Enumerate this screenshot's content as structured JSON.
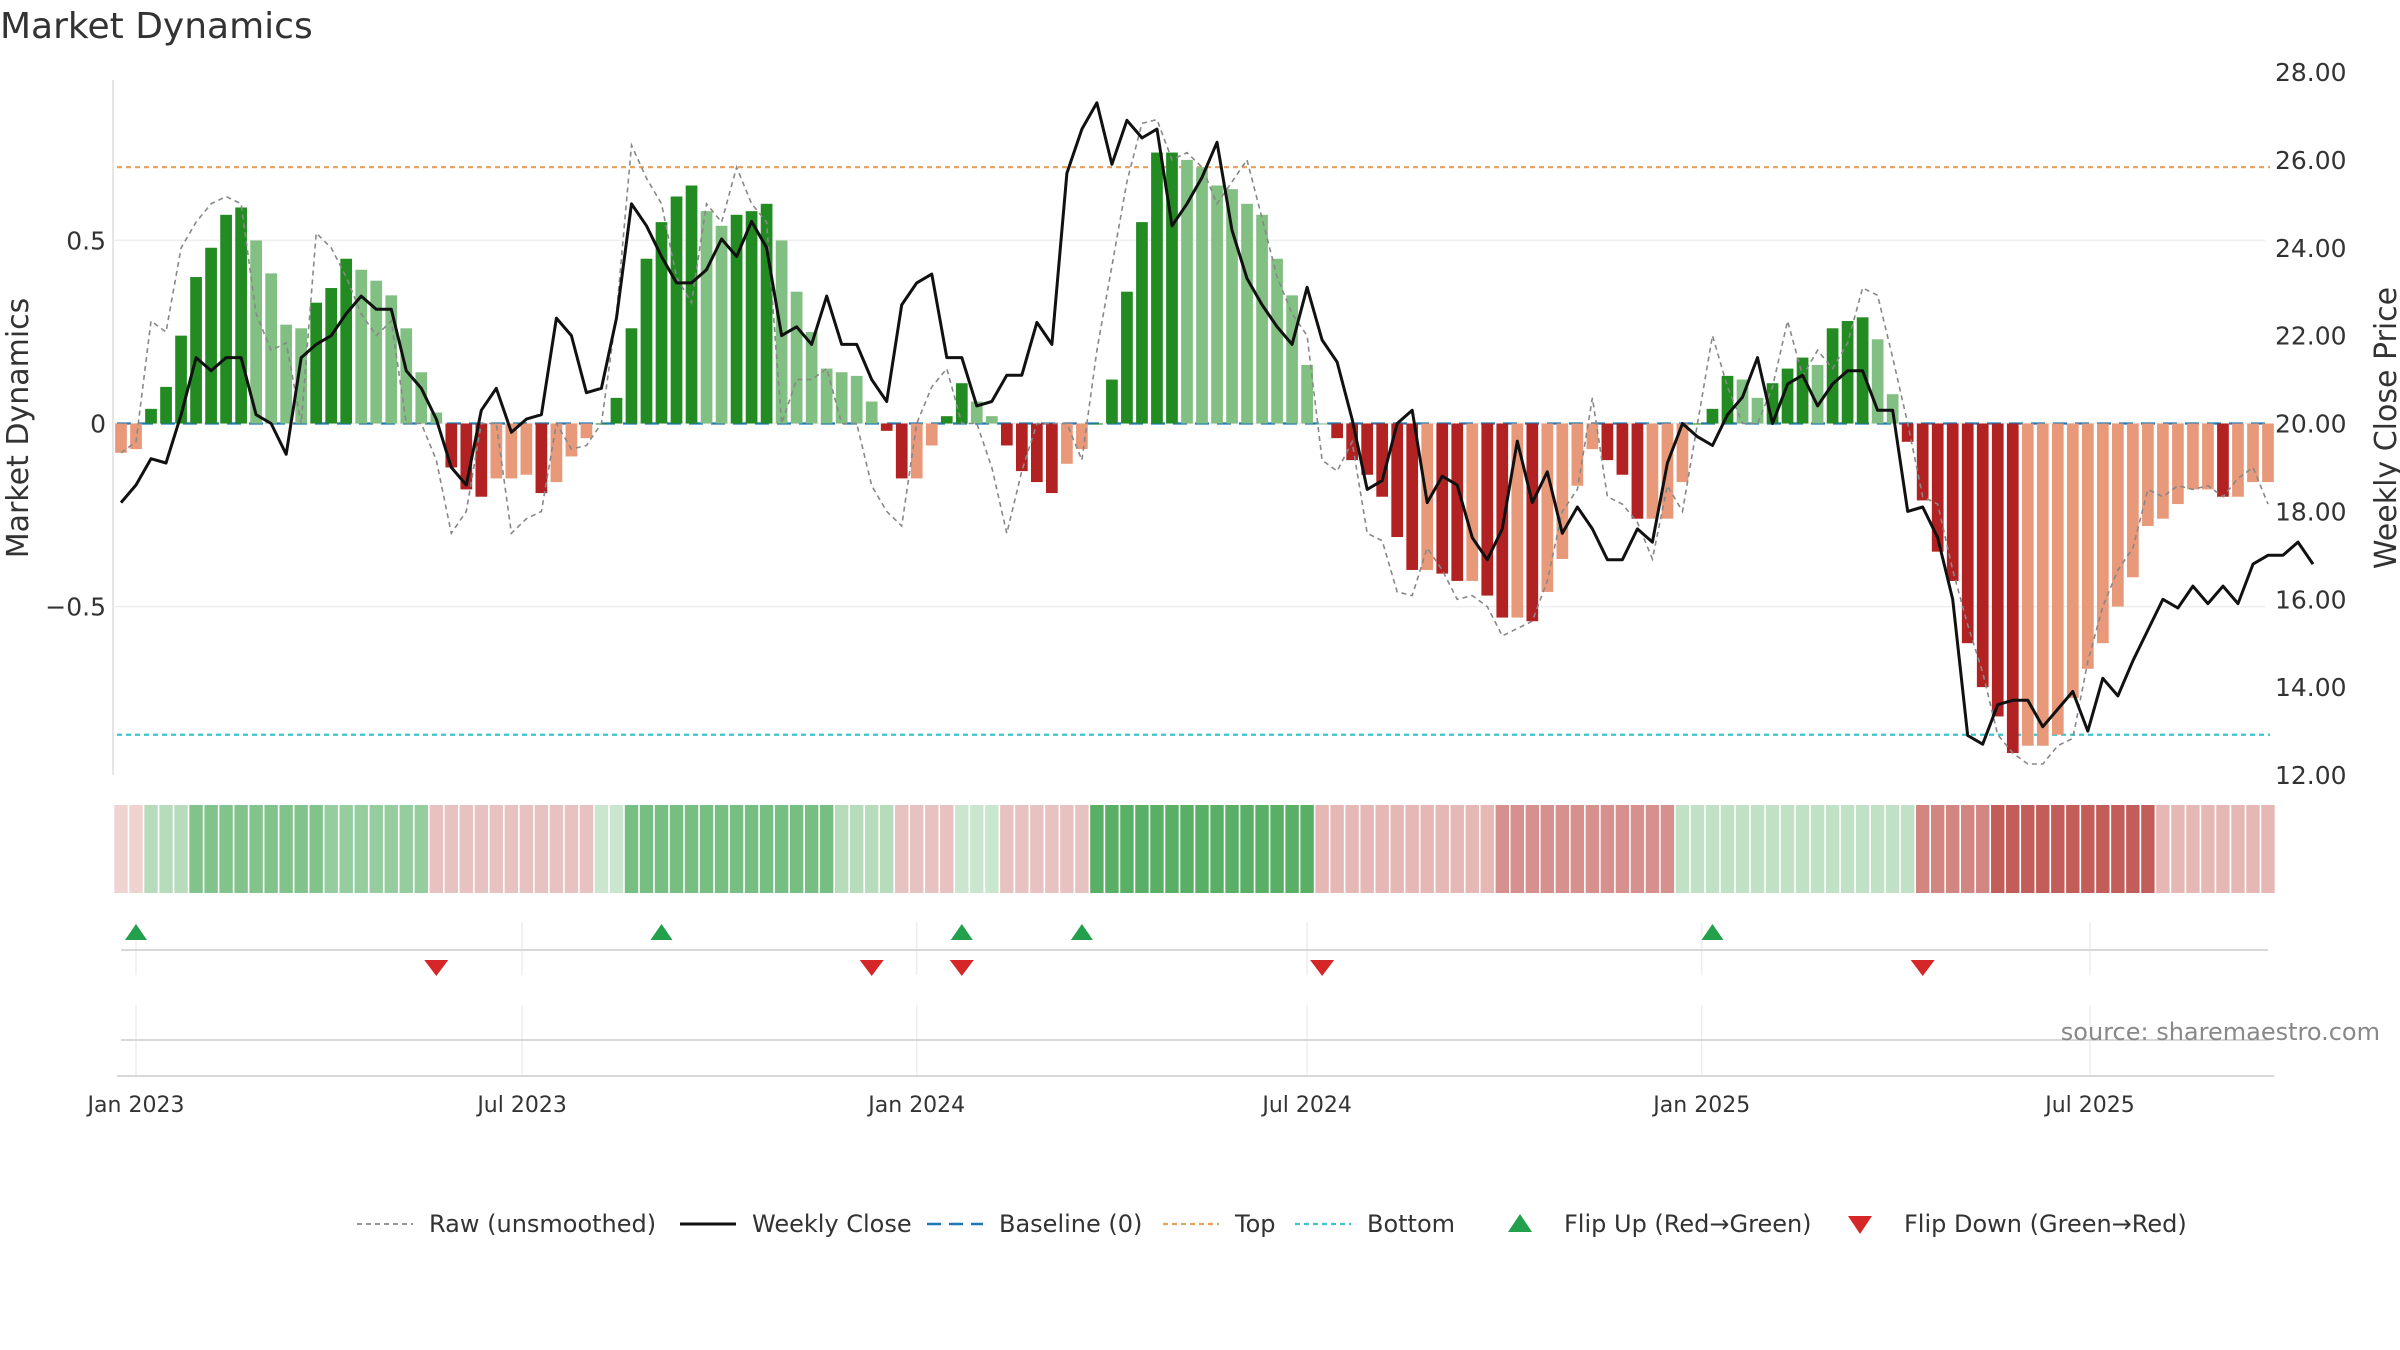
{
  "title": "Market Dynamics",
  "source": "source: sharemaestro.com",
  "colors": {
    "green_strong": "#228b22",
    "green_light": "#82bf82",
    "red_strong": "#b22222",
    "red_light": "#e8997a",
    "raw": "#888888",
    "close": "#111111",
    "baseline": "#1f77b4",
    "top": "#e6a15c",
    "bottom": "#3fc5c9",
    "flip_up": "#22a04b",
    "flip_down": "#d62728"
  },
  "chart_data": {
    "type": "bar",
    "x_start": "2022-12-26",
    "weeks": 144,
    "x_ticks": [
      {
        "label": "Jan 2023",
        "date": "2023-01-02"
      },
      {
        "label": "Jul 2023",
        "date": "2023-07-01"
      },
      {
        "label": "Jan 2024",
        "date": "2024-01-01"
      },
      {
        "label": "Jul 2024",
        "date": "2024-07-01"
      },
      {
        "label": "Jan 2025",
        "date": "2025-01-01"
      },
      {
        "label": "Jul 2025",
        "date": "2025-07-01"
      }
    ],
    "y_left": {
      "label": "Market Dynamics",
      "ylim": [
        -0.96,
        0.96
      ],
      "ticks": [
        {
          "v": 0.5,
          "label": "0.5"
        },
        {
          "v": 0,
          "label": "0"
        },
        {
          "v": -0.5,
          "label": "−0.5"
        }
      ]
    },
    "y_right": {
      "label": "Weekly Close Price",
      "ylim": [
        12,
        28
      ],
      "ticks": [
        "12.00",
        "14.00",
        "16.00",
        "18.00",
        "20.00",
        "22.00",
        "24.00",
        "26.00",
        "28.00"
      ]
    },
    "top_level": 0.7,
    "bottom_level": -0.85,
    "dynamics": [
      -0.08,
      -0.07,
      0.04,
      0.1,
      0.24,
      0.4,
      0.48,
      0.57,
      0.59,
      0.5,
      0.41,
      0.27,
      0.26,
      0.33,
      0.37,
      0.45,
      0.42,
      0.39,
      0.35,
      0.26,
      0.14,
      0.03,
      -0.12,
      -0.18,
      -0.2,
      -0.15,
      -0.15,
      -0.14,
      -0.19,
      -0.16,
      -0.09,
      -0.04,
      0.0,
      0.07,
      0.26,
      0.45,
      0.55,
      0.62,
      0.65,
      0.58,
      0.54,
      0.57,
      0.58,
      0.6,
      0.5,
      0.36,
      0.25,
      0.15,
      0.14,
      0.13,
      0.06,
      -0.02,
      -0.15,
      -0.15,
      -0.06,
      0.02,
      0.11,
      0.06,
      0.02,
      -0.06,
      -0.13,
      -0.16,
      -0.19,
      -0.11,
      -0.07,
      0.0,
      0.12,
      0.36,
      0.55,
      0.74,
      0.74,
      0.72,
      0.7,
      0.65,
      0.64,
      0.6,
      0.57,
      0.45,
      0.35,
      0.16,
      0.0,
      -0.04,
      -0.1,
      -0.14,
      -0.2,
      -0.31,
      -0.4,
      -0.4,
      -0.41,
      -0.43,
      -0.43,
      -0.47,
      -0.53,
      -0.53,
      -0.54,
      -0.46,
      -0.37,
      -0.17,
      -0.07,
      -0.1,
      -0.14,
      -0.26,
      -0.26,
      -0.26,
      -0.16,
      0.0,
      0.04,
      0.13,
      0.12,
      0.07,
      0.11,
      0.15,
      0.18,
      0.16,
      0.26,
      0.28,
      0.29,
      0.23,
      0.08,
      -0.05,
      -0.21,
      -0.35,
      -0.43,
      -0.6,
      -0.72,
      -0.8,
      -0.9,
      -0.88,
      -0.88,
      -0.85,
      -0.75,
      -0.67,
      -0.6,
      -0.5,
      -0.42,
      -0.28,
      -0.26,
      -0.22,
      -0.18,
      -0.18,
      -0.2,
      -0.2,
      -0.16,
      -0.16
    ],
    "raw_dynamics": [
      -0.08,
      -0.05,
      0.28,
      0.25,
      0.48,
      0.55,
      0.6,
      0.62,
      0.6,
      0.3,
      0.2,
      0.22,
      0.0,
      0.52,
      0.48,
      0.4,
      0.3,
      0.24,
      0.28,
      0.0,
      0.0,
      -0.1,
      -0.3,
      -0.24,
      0.0,
      0.0,
      -0.3,
      -0.26,
      -0.24,
      0.0,
      -0.07,
      -0.06,
      0.0,
      0.3,
      0.76,
      0.67,
      0.6,
      0.4,
      0.33,
      0.6,
      0.55,
      0.7,
      0.6,
      0.55,
      0.0,
      0.12,
      0.12,
      0.15,
      0.0,
      0.0,
      -0.17,
      -0.24,
      -0.28,
      0.0,
      0.1,
      0.15,
      0.0,
      0.0,
      -0.12,
      -0.3,
      -0.13,
      0.0,
      0.0,
      0.0,
      -0.1,
      0.2,
      0.43,
      0.66,
      0.82,
      0.83,
      0.72,
      0.74,
      0.7,
      0.6,
      0.66,
      0.72,
      0.56,
      0.4,
      0.3,
      0.24,
      -0.1,
      -0.13,
      -0.05,
      -0.3,
      -0.32,
      -0.46,
      -0.47,
      -0.34,
      -0.4,
      -0.48,
      -0.47,
      -0.5,
      -0.58,
      -0.56,
      -0.54,
      -0.43,
      -0.24,
      -0.18,
      0.07,
      -0.2,
      -0.22,
      -0.27,
      -0.37,
      -0.17,
      -0.24,
      0.0,
      0.24,
      0.1,
      0.0,
      0.0,
      0.1,
      0.28,
      0.13,
      0.2,
      0.15,
      0.22,
      0.37,
      0.35,
      0.18,
      0.0,
      -0.2,
      -0.22,
      -0.4,
      -0.55,
      -0.68,
      -0.85,
      -0.9,
      -0.93,
      -0.93,
      -0.88,
      -0.86,
      -0.65,
      -0.5,
      -0.4,
      -0.34,
      -0.18,
      -0.2,
      -0.17,
      -0.18,
      -0.17,
      -0.2,
      -0.15,
      -0.12,
      -0.22
    ],
    "weekly_close": [
      18.2,
      18.6,
      19.2,
      19.1,
      20.2,
      21.5,
      21.2,
      21.5,
      21.5,
      20.2,
      20.0,
      19.3,
      21.5,
      21.8,
      22.0,
      22.5,
      22.9,
      22.6,
      22.6,
      21.2,
      20.8,
      20.1,
      19.0,
      18.6,
      20.3,
      20.8,
      19.8,
      20.1,
      20.2,
      22.4,
      22.0,
      20.7,
      20.8,
      22.4,
      25.0,
      24.5,
      23.8,
      23.2,
      23.2,
      23.5,
      24.2,
      23.8,
      24.6,
      24.0,
      22.0,
      22.2,
      21.8,
      22.9,
      21.8,
      21.8,
      21.0,
      20.5,
      22.7,
      23.2,
      23.4,
      21.5,
      21.5,
      20.4,
      20.5,
      21.1,
      21.1,
      22.3,
      21.8,
      25.7,
      26.7,
      27.3,
      25.9,
      26.9,
      26.5,
      26.7,
      24.5,
      25.0,
      25.6,
      26.4,
      24.4,
      23.3,
      22.7,
      22.2,
      21.8,
      23.1,
      21.9,
      21.4,
      20.1,
      18.5,
      18.7,
      20.0,
      20.3,
      18.2,
      18.8,
      18.6,
      17.4,
      16.9,
      17.6,
      19.6,
      18.2,
      18.9,
      17.5,
      18.1,
      17.6,
      16.9,
      16.9,
      17.6,
      17.3,
      19.1,
      20.0,
      19.7,
      19.5,
      20.2,
      20.6,
      21.5,
      20.0,
      20.9,
      21.1,
      20.4,
      20.9,
      21.2,
      21.2,
      20.3,
      20.3,
      18.0,
      18.1,
      17.4,
      16.0,
      12.9,
      12.7,
      13.6,
      13.7,
      13.7,
      13.1,
      13.5,
      13.9,
      13.0,
      14.2,
      13.8,
      14.6,
      15.3,
      16.0,
      15.8,
      16.3,
      15.9,
      16.3,
      15.9,
      16.8,
      17.0,
      17.0,
      17.3,
      16.8
    ],
    "flip_up_weeks": [
      1,
      36,
      56,
      64,
      106
    ],
    "flip_down_weeks": [
      21,
      50,
      56,
      80,
      120
    ],
    "regime_strip_weeks": [
      {
        "from": 0,
        "to": 1,
        "state": "red",
        "alpha": 0.22
      },
      {
        "from": 2,
        "to": 4,
        "state": "green",
        "alpha": 0.35
      },
      {
        "from": 5,
        "to": 13,
        "state": "green",
        "alpha": 0.6
      },
      {
        "from": 14,
        "to": 20,
        "state": "green",
        "alpha": 0.5
      },
      {
        "from": 21,
        "to": 31,
        "state": "red",
        "alpha": 0.3
      },
      {
        "from": 32,
        "to": 33,
        "state": "green",
        "alpha": 0.25
      },
      {
        "from": 34,
        "to": 47,
        "state": "green",
        "alpha": 0.65
      },
      {
        "from": 48,
        "to": 51,
        "state": "green",
        "alpha": 0.35
      },
      {
        "from": 52,
        "to": 55,
        "state": "red",
        "alpha": 0.3
      },
      {
        "from": 56,
        "to": 58,
        "state": "green",
        "alpha": 0.25
      },
      {
        "from": 59,
        "to": 64,
        "state": "red",
        "alpha": 0.3
      },
      {
        "from": 65,
        "to": 79,
        "state": "green",
        "alpha": 0.8
      },
      {
        "from": 80,
        "to": 91,
        "state": "red",
        "alpha": 0.35
      },
      {
        "from": 92,
        "to": 103,
        "state": "red",
        "alpha": 0.55
      },
      {
        "from": 104,
        "to": 119,
        "state": "green",
        "alpha": 0.3
      },
      {
        "from": 120,
        "to": 124,
        "state": "red",
        "alpha": 0.6
      },
      {
        "from": 125,
        "to": 135,
        "state": "red",
        "alpha": 0.8
      },
      {
        "from": 136,
        "to": 143,
        "state": "red",
        "alpha": 0.35
      }
    ]
  },
  "legend": [
    {
      "key": "raw",
      "label": "Raw (unsmoothed)"
    },
    {
      "key": "close",
      "label": "Weekly Close"
    },
    {
      "key": "baseline",
      "label": "Baseline (0)"
    },
    {
      "key": "top",
      "label": "Top"
    },
    {
      "key": "bottom",
      "label": "Bottom"
    },
    {
      "key": "flip_up",
      "label": "Flip Up (Red→Green)"
    },
    {
      "key": "flip_down",
      "label": "Flip Down (Green→Red)"
    }
  ]
}
